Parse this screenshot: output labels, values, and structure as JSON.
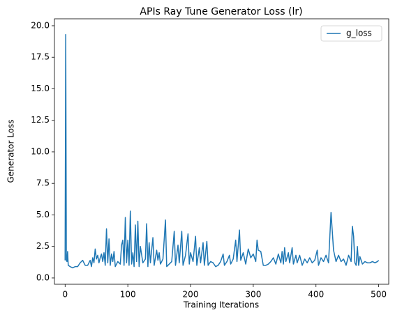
{
  "chart_data": {
    "type": "line",
    "title": "APIs Ray Tune Generator Loss (lr)",
    "xlabel": "Training Iterations",
    "ylabel": "Generator Loss",
    "legend": "upper right",
    "grid": false,
    "xlim": [
      -17,
      516
    ],
    "ylim": [
      -0.5,
      20.55
    ],
    "xticks": [
      0,
      100,
      200,
      300,
      400,
      500
    ],
    "yticks": [
      {
        "value": 0,
        "label": "0.0"
      },
      {
        "value": 2.5,
        "label": "2.5"
      },
      {
        "value": 5,
        "label": "5.0"
      },
      {
        "value": 7.5,
        "label": "7.5"
      },
      {
        "value": 10,
        "label": "10.0"
      },
      {
        "value": 12.5,
        "label": "12.5"
      },
      {
        "value": 15,
        "label": "15.0"
      },
      {
        "value": 17.5,
        "label": "17.5"
      },
      {
        "value": 20,
        "label": "20.0"
      }
    ],
    "x": [
      0,
      1,
      2,
      3,
      4,
      5,
      8,
      12,
      16,
      20,
      24,
      28,
      32,
      36,
      40,
      42,
      44,
      46,
      48,
      50,
      52,
      54,
      56,
      58,
      60,
      62,
      64,
      66,
      68,
      70,
      72,
      74,
      76,
      78,
      80,
      84,
      88,
      90,
      92,
      94,
      96,
      98,
      100,
      102,
      104,
      106,
      108,
      110,
      112,
      114,
      116,
      118,
      120,
      124,
      128,
      130,
      132,
      134,
      136,
      140,
      142,
      146,
      148,
      150,
      152,
      156,
      160,
      162,
      166,
      170,
      174,
      176,
      180,
      182,
      186,
      188,
      192,
      196,
      198,
      200,
      204,
      208,
      210,
      214,
      216,
      220,
      222,
      226,
      228,
      232,
      236,
      240,
      244,
      248,
      252,
      254,
      258,
      262,
      264,
      268,
      272,
      274,
      278,
      280,
      284,
      288,
      292,
      296,
      300,
      304,
      306,
      308,
      312,
      316,
      320,
      324,
      328,
      332,
      336,
      340,
      344,
      346,
      348,
      350,
      352,
      356,
      358,
      362,
      364,
      368,
      370,
      374,
      378,
      382,
      386,
      390,
      394,
      398,
      402,
      404,
      408,
      412,
      416,
      420,
      424,
      428,
      432,
      436,
      440,
      444,
      448,
      452,
      456,
      458,
      460,
      462,
      464,
      466,
      468,
      470,
      474,
      478,
      482,
      486,
      490,
      494,
      498,
      500
    ],
    "series": [
      {
        "name": "g_loss",
        "color": "#1f77b4",
        "values": [
          1.4,
          19.3,
          1.4,
          1.3,
          2.1,
          1.0,
          0.9,
          0.8,
          0.9,
          0.9,
          1.2,
          1.4,
          1.0,
          1.0,
          1.4,
          0.9,
          1.6,
          1.2,
          2.3,
          1.5,
          1.8,
          1.2,
          1.6,
          1.9,
          1.3,
          2.0,
          1.0,
          3.9,
          1.2,
          3.1,
          1.0,
          1.9,
          1.3,
          2.1,
          0.9,
          1.3,
          1.1,
          2.6,
          3.0,
          1.0,
          4.8,
          1.2,
          3.0,
          1.0,
          5.3,
          1.1,
          2.0,
          0.9,
          4.2,
          1.3,
          4.5,
          0.9,
          2.5,
          1.2,
          1.5,
          4.3,
          0.9,
          2.8,
          1.2,
          3.2,
          1.0,
          2.2,
          1.4,
          2.0,
          1.1,
          1.5,
          4.6,
          0.9,
          1.1,
          1.3,
          3.7,
          1.0,
          2.6,
          1.2,
          3.7,
          1.0,
          1.8,
          3.5,
          1.1,
          2.0,
          1.3,
          3.3,
          1.0,
          2.4,
          1.2,
          2.8,
          1.0,
          2.9,
          1.0,
          1.3,
          1.2,
          0.9,
          1.0,
          1.3,
          1.9,
          1.0,
          1.3,
          1.8,
          1.1,
          1.5,
          3.0,
          1.3,
          3.8,
          1.4,
          2.0,
          1.1,
          2.3,
          1.6,
          1.9,
          1.3,
          3.0,
          2.2,
          2.1,
          1.0,
          1.0,
          1.1,
          1.3,
          1.6,
          1.1,
          1.9,
          1.2,
          2.1,
          1.1,
          2.4,
          1.3,
          2.0,
          1.2,
          2.4,
          1.1,
          1.8,
          1.2,
          1.8,
          1.0,
          1.5,
          1.2,
          1.6,
          1.2,
          1.4,
          2.2,
          1.0,
          1.6,
          1.3,
          1.8,
          1.2,
          5.2,
          2.2,
          1.3,
          1.8,
          1.3,
          1.5,
          1.0,
          1.8,
          1.3,
          4.1,
          3.3,
          1.2,
          1.0,
          2.5,
          1.0,
          1.7,
          1.1,
          1.3,
          1.2,
          1.2,
          1.3,
          1.2,
          1.3,
          1.4
        ]
      }
    ]
  }
}
